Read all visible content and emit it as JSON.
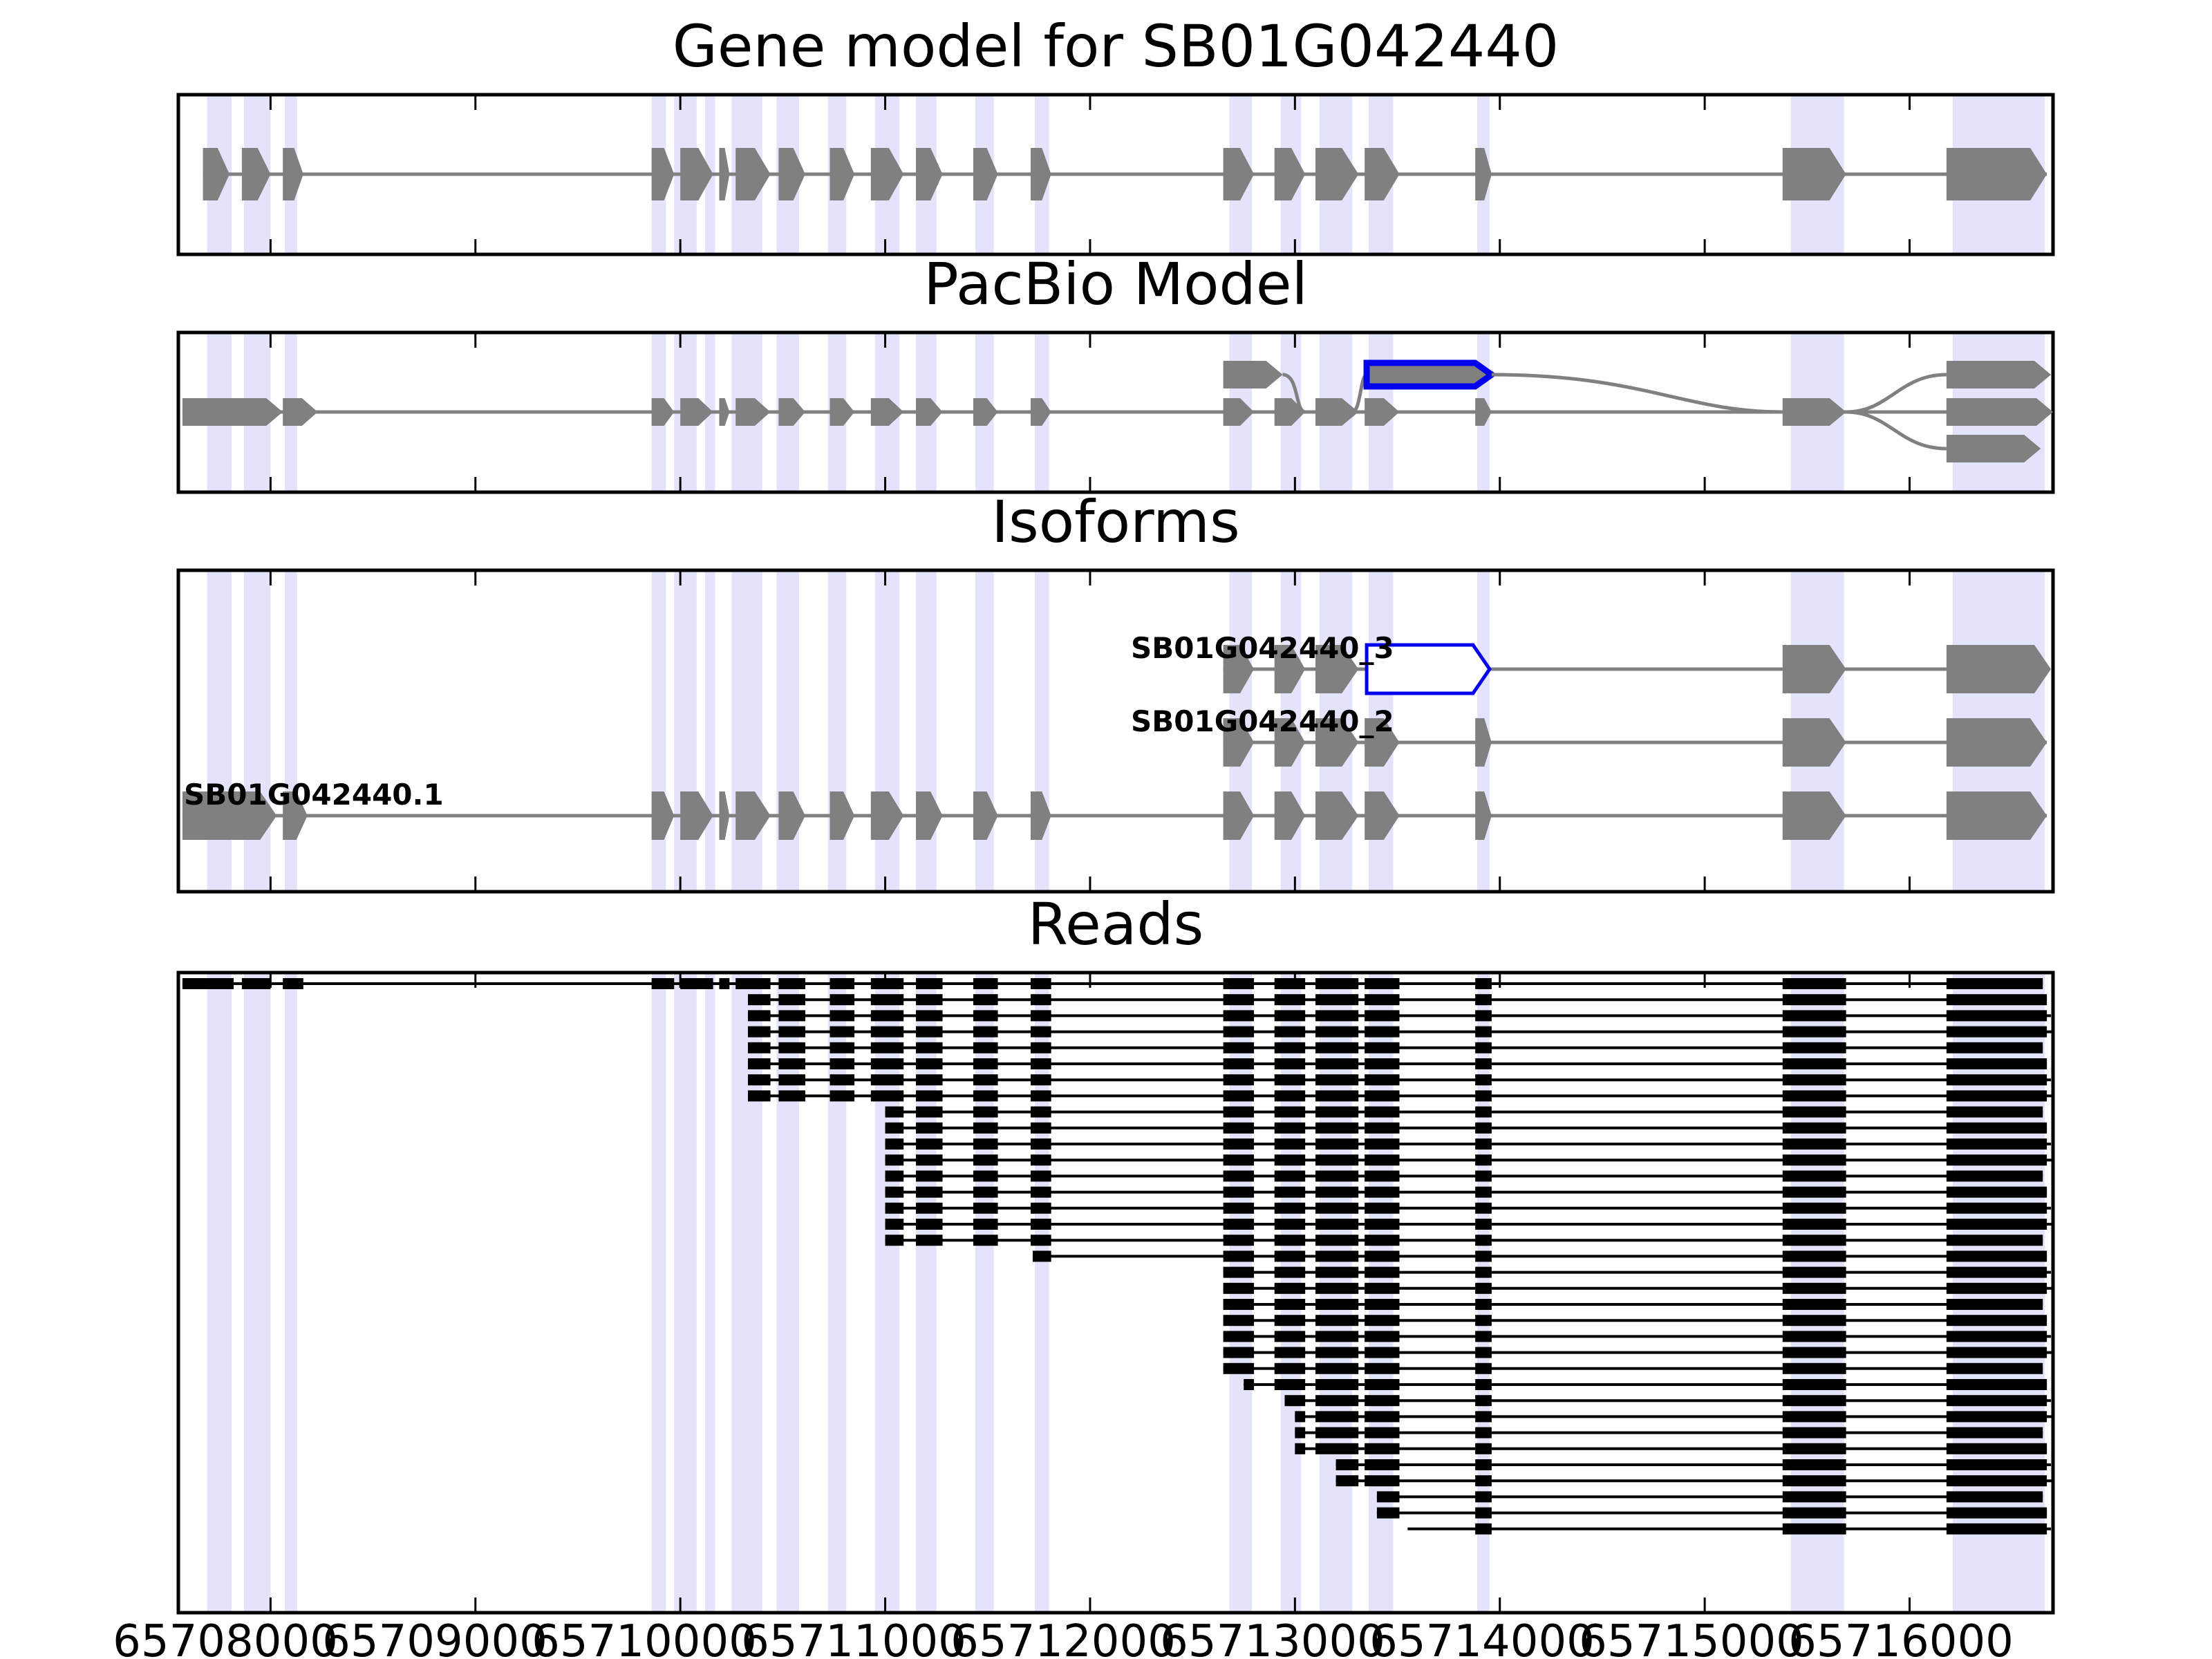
{
  "chart_data": {
    "type": "gene-track",
    "xlim": [
      65707550,
      65716700
    ],
    "x_ticks": [
      65708000,
      65709000,
      65710000,
      65711000,
      65712000,
      65713000,
      65714000,
      65715000,
      65716000
    ],
    "x_tick_labels": [
      "65708000",
      "65709000",
      "65710000",
      "65711000",
      "65712000",
      "65713000",
      "65714000",
      "65715000",
      "65716000"
    ],
    "shaded_exons": [
      [
        65707690,
        65707810
      ],
      [
        65707870,
        65708000
      ],
      [
        65708070,
        65708130
      ],
      [
        65709860,
        65709930
      ],
      [
        65709970,
        65710080
      ],
      [
        65710120,
        65710170
      ],
      [
        65710250,
        65710400
      ],
      [
        65710470,
        65710580
      ],
      [
        65710720,
        65710810
      ],
      [
        65710950,
        65711070
      ],
      [
        65711150,
        65711250
      ],
      [
        65711440,
        65711530
      ],
      [
        65711730,
        65711800
      ],
      [
        65712680,
        65712790
      ],
      [
        65712930,
        65713030
      ],
      [
        65713120,
        65713280
      ],
      [
        65713360,
        65713480
      ],
      [
        65713890,
        65713950
      ],
      [
        65715420,
        65715680
      ],
      [
        65716210,
        65716660
      ]
    ],
    "panels": [
      {
        "title": "Gene model for SB01G042440",
        "kind": "model",
        "tracks": [
          {
            "label": "",
            "highlight": false,
            "exons": [
              [
                65707670,
                65707800
              ],
              [
                65707860,
                65708000
              ],
              [
                65708060,
                65708160
              ],
              [
                65709860,
                65709970
              ],
              [
                65710000,
                65710160
              ],
              [
                65710190,
                65710240
              ],
              [
                65710270,
                65710440
              ],
              [
                65710480,
                65710610
              ],
              [
                65710730,
                65710850
              ],
              [
                65710930,
                65711090
              ],
              [
                65711150,
                65711280
              ],
              [
                65711430,
                65711550
              ],
              [
                65711710,
                65711810
              ],
              [
                65712650,
                65712800
              ],
              [
                65712900,
                65713050
              ],
              [
                65713100,
                65713310
              ],
              [
                65713340,
                65713510
              ],
              [
                65713880,
                65713960
              ],
              [
                65715380,
                65715690
              ],
              [
                65716180,
                65716670
              ]
            ]
          }
        ]
      },
      {
        "title": "PacBio Model",
        "kind": "graph",
        "tracks": [
          {
            "label": "",
            "highlight": false,
            "exons": [
              [
                65707570,
                65708060
              ],
              [
                65708060,
                65708230
              ]
            ]
          },
          {
            "label": "",
            "highlight": true,
            "exons": [
              [
                65713350,
                65713960
              ]
            ]
          }
        ]
      },
      {
        "title": "Isoforms",
        "kind": "isoforms",
        "tracks": [
          {
            "label": "SB01G042440_3",
            "highlight": false,
            "exons": [
              [
                65712650,
                65712800
              ]
            ]
          },
          {
            "label": "SB01G042440_2",
            "highlight": false,
            "exons": [
              [
                65712650,
                65712800
              ]
            ]
          },
          {
            "label": "SB01G042440.1",
            "highlight": false,
            "exons": [
              [
                65707570,
                65708030
              ]
            ]
          }
        ]
      },
      {
        "title": "Reads",
        "kind": "reads",
        "read_count": 35
      }
    ]
  }
}
